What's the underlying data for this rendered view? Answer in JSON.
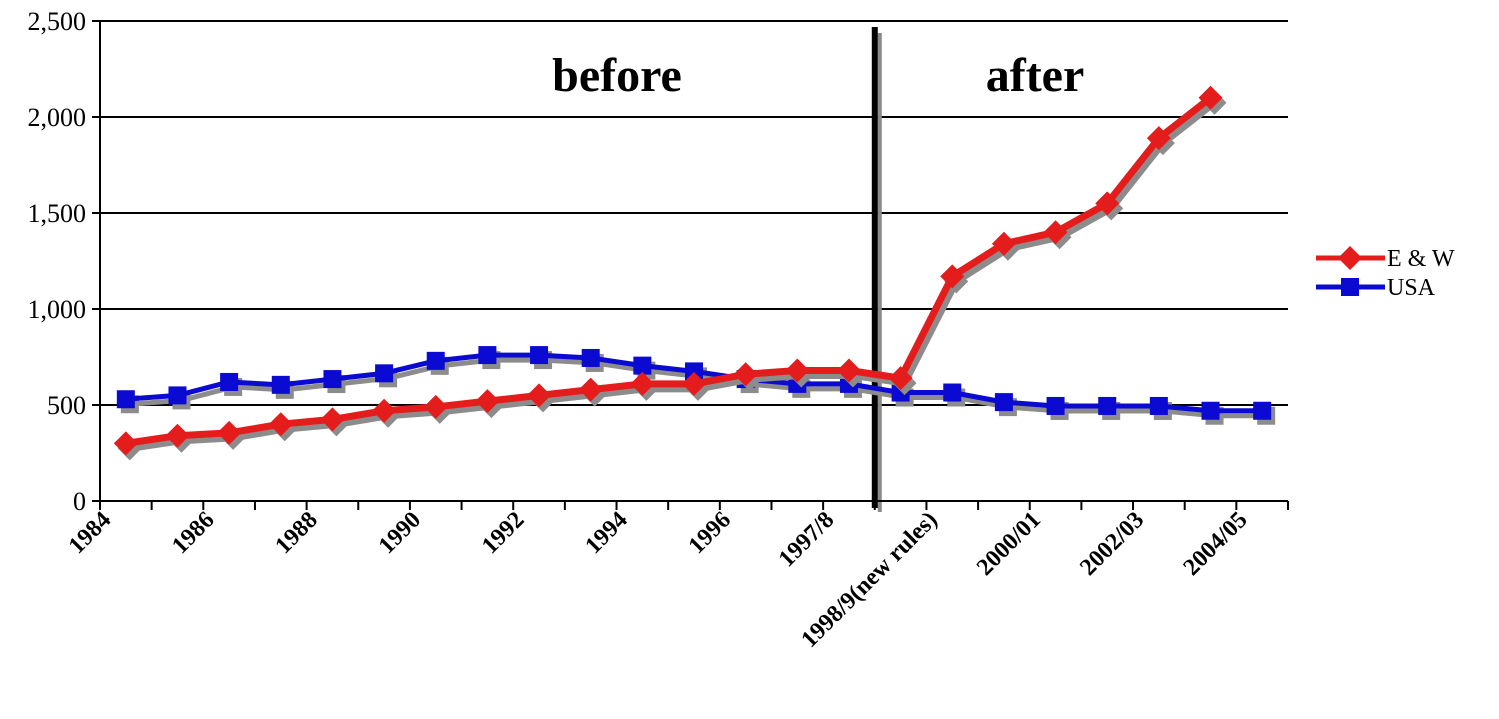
{
  "chart_data": {
    "type": "line",
    "title": "",
    "xlabel": "",
    "ylabel": "",
    "ylim": [
      0,
      2500
    ],
    "yticks": [
      0,
      500,
      1000,
      1500,
      2000,
      2500
    ],
    "ytick_labels": [
      "0",
      "500",
      "1,000",
      "1,500",
      "2,000",
      "2,500"
    ],
    "grid": "horizontal",
    "legend_position": "right",
    "x_tick_labels": [
      "1984",
      "1986",
      "1988",
      "1990",
      "1992",
      "1994",
      "1996",
      "1997/8",
      "1998/9(new rules)",
      "2000/01",
      "2002/03",
      "2004/05"
    ],
    "annotations": [
      "before",
      "after"
    ],
    "divider_between": [
      "1997/8",
      "1998/9(new rules)"
    ],
    "series": [
      {
        "name": "E & W",
        "color": "#e51c1c",
        "marker": "diamond",
        "values": [
          300,
          340,
          355,
          400,
          425,
          470,
          490,
          520,
          550,
          580,
          610,
          610,
          660,
          680,
          680,
          640,
          1170,
          1340,
          1400,
          1550,
          1890,
          2100
        ]
      },
      {
        "name": "USA",
        "color": "#0a0ad2",
        "marker": "square",
        "values": [
          530,
          550,
          620,
          605,
          635,
          665,
          730,
          760,
          760,
          745,
          705,
          675,
          635,
          610,
          610,
          565,
          565,
          515,
          495,
          495,
          495,
          470,
          470
        ]
      }
    ]
  }
}
